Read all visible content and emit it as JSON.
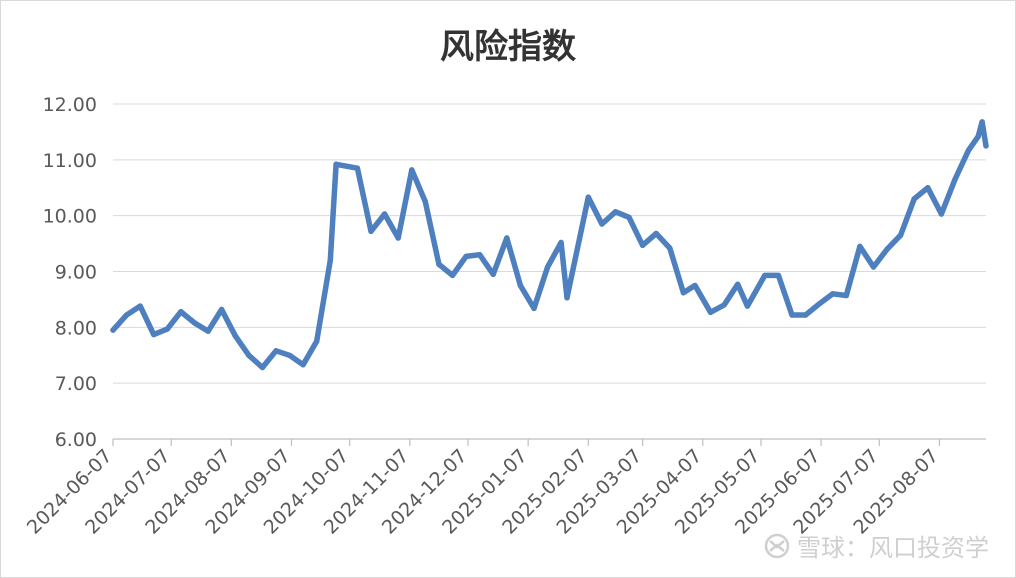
{
  "chart_data": {
    "type": "line",
    "title": "风险指数",
    "xlabel": "",
    "ylabel": "",
    "ylim": [
      6,
      12
    ],
    "y_ticks": [
      "6.00",
      "7.00",
      "8.00",
      "9.00",
      "10.00",
      "11.00",
      "12.00"
    ],
    "x_ticks": [
      "2024-06-07",
      "2024-07-07",
      "2024-08-07",
      "2024-09-07",
      "2024-10-07",
      "2024-11-07",
      "2024-12-07",
      "2025-01-07",
      "2025-02-07",
      "2025-03-07",
      "2025-04-07",
      "2025-05-07",
      "2025-06-07",
      "2025-07-07",
      "2025-08-07"
    ],
    "xlim": [
      "2024-06-07",
      "2025-08-31"
    ],
    "grid": true,
    "legend": "none",
    "series": [
      {
        "color": "#4e7fbe",
        "points": [
          [
            "2024-06-07",
            7.95
          ],
          [
            "2024-06-14",
            8.22
          ],
          [
            "2024-06-21",
            8.38
          ],
          [
            "2024-06-28",
            7.87
          ],
          [
            "2024-07-05",
            7.97
          ],
          [
            "2024-07-12",
            8.28
          ],
          [
            "2024-07-19",
            8.08
          ],
          [
            "2024-07-26",
            7.93
          ],
          [
            "2024-08-02",
            8.32
          ],
          [
            "2024-08-09",
            7.85
          ],
          [
            "2024-08-16",
            7.5
          ],
          [
            "2024-08-23",
            7.28
          ],
          [
            "2024-08-30",
            7.58
          ],
          [
            "2024-09-06",
            7.5
          ],
          [
            "2024-09-13",
            7.33
          ],
          [
            "2024-09-20",
            7.75
          ],
          [
            "2024-09-27",
            9.2
          ],
          [
            "2024-09-30",
            10.92
          ],
          [
            "2024-10-11",
            10.85
          ],
          [
            "2024-10-18",
            9.72
          ],
          [
            "2024-10-25",
            10.03
          ],
          [
            "2024-11-01",
            9.6
          ],
          [
            "2024-11-08",
            10.82
          ],
          [
            "2024-11-15",
            10.25
          ],
          [
            "2024-11-22",
            9.13
          ],
          [
            "2024-11-29",
            8.93
          ],
          [
            "2024-12-06",
            9.27
          ],
          [
            "2024-12-13",
            9.3
          ],
          [
            "2024-12-20",
            8.95
          ],
          [
            "2024-12-27",
            9.6
          ],
          [
            "2025-01-03",
            8.75
          ],
          [
            "2025-01-10",
            8.34
          ],
          [
            "2025-01-17",
            9.08
          ],
          [
            "2025-01-24",
            9.52
          ],
          [
            "2025-01-27",
            8.53
          ],
          [
            "2025-02-07",
            10.33
          ],
          [
            "2025-02-14",
            9.85
          ],
          [
            "2025-02-21",
            10.07
          ],
          [
            "2025-02-28",
            9.97
          ],
          [
            "2025-03-07",
            9.47
          ],
          [
            "2025-03-14",
            9.68
          ],
          [
            "2025-03-21",
            9.42
          ],
          [
            "2025-03-28",
            8.62
          ],
          [
            "2025-04-03",
            8.75
          ],
          [
            "2025-04-11",
            8.27
          ],
          [
            "2025-04-18",
            8.4
          ],
          [
            "2025-04-25",
            8.77
          ],
          [
            "2025-04-30",
            8.38
          ],
          [
            "2025-05-09",
            8.93
          ],
          [
            "2025-05-16",
            8.93
          ],
          [
            "2025-05-23",
            8.22
          ],
          [
            "2025-05-30",
            8.22
          ],
          [
            "2025-06-06",
            8.42
          ],
          [
            "2025-06-13",
            8.6
          ],
          [
            "2025-06-20",
            8.57
          ],
          [
            "2025-06-27",
            9.45
          ],
          [
            "2025-07-04",
            9.08
          ],
          [
            "2025-07-11",
            9.4
          ],
          [
            "2025-07-18",
            9.65
          ],
          [
            "2025-07-25",
            10.3
          ],
          [
            "2025-08-01",
            10.5
          ],
          [
            "2025-08-08",
            10.03
          ],
          [
            "2025-08-15",
            10.65
          ],
          [
            "2025-08-22",
            11.17
          ],
          [
            "2025-08-27",
            11.42
          ],
          [
            "2025-08-29",
            11.68
          ],
          [
            "2025-08-31",
            11.25
          ]
        ]
      }
    ]
  },
  "watermark": {
    "icon": "snowball-icon",
    "text": "雪球：风口投资学"
  }
}
